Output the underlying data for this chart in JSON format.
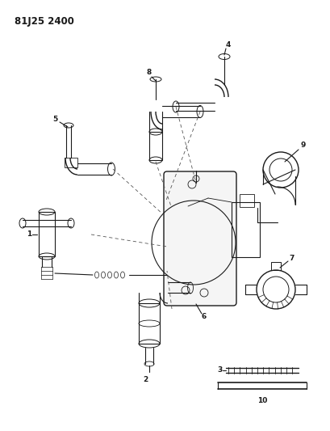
{
  "title": "81J25 2400",
  "bg_color": "#ffffff",
  "fg_color": "#000000",
  "title_fontsize": 8.5,
  "figsize": [
    4.09,
    5.33
  ],
  "dpi": 100,
  "dark": "#1a1a1a",
  "mid": "#444444",
  "light": "#888888"
}
